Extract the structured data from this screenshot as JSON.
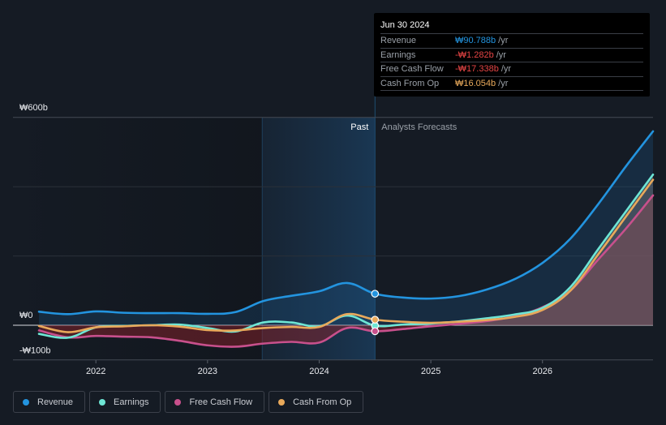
{
  "tooltip": {
    "date": "Jun 30 2024",
    "rows": [
      {
        "label": "Revenue",
        "value": "₩90.788b",
        "unit": "/yr",
        "color": "#2394df"
      },
      {
        "label": "Earnings",
        "value": "-₩1.282b",
        "unit": "/yr",
        "color": "#e64545"
      },
      {
        "label": "Free Cash Flow",
        "value": "-₩17.338b",
        "unit": "/yr",
        "color": "#e64545"
      },
      {
        "label": "Cash From Op",
        "value": "₩16.054b",
        "unit": "/yr",
        "color": "#e8a95b"
      }
    ]
  },
  "legend": [
    {
      "label": "Revenue",
      "color": "#2394df"
    },
    {
      "label": "Earnings",
      "color": "#6ee6d5"
    },
    {
      "label": "Free Cash Flow",
      "color": "#c8508c"
    },
    {
      "label": "Cash From Op",
      "color": "#e8a95b"
    }
  ],
  "chart_data": {
    "type": "line",
    "title": "",
    "xlabel": "",
    "ylabel": "",
    "currency_prefix": "₩",
    "y_ticks": [
      {
        "value": 600,
        "label": "₩600b"
      },
      {
        "value": 0,
        "label": "₩0"
      },
      {
        "value": -100,
        "label": "-₩100b"
      }
    ],
    "y_gridlines": [
      600,
      400,
      200,
      0,
      -100
    ],
    "ylim": [
      -100,
      600
    ],
    "xlim": [
      2021.49,
      2026.99
    ],
    "x_ticks": [
      {
        "value": 2022,
        "label": "2022"
      },
      {
        "value": 2023,
        "label": "2023"
      },
      {
        "value": 2024,
        "label": "2024"
      },
      {
        "value": 2025,
        "label": "2025"
      },
      {
        "value": 2026,
        "label": "2026"
      }
    ],
    "regions": {
      "past_label": "Past",
      "forecast_label": "Analysts Forecasts",
      "highlight_start": 2023.49,
      "divider": 2024.5
    },
    "highlight_date": 2024.5,
    "legend_position": "bottom-left",
    "series": [
      {
        "name": "Revenue",
        "color": "#2394df",
        "x": [
          2021.49,
          2021.75,
          2022.0,
          2022.25,
          2022.5,
          2022.75,
          2023.0,
          2023.25,
          2023.5,
          2023.75,
          2024.0,
          2024.25,
          2024.5,
          2024.75,
          2025.0,
          2025.25,
          2025.5,
          2025.75,
          2026.0,
          2026.25,
          2026.5,
          2026.75,
          2026.99
        ],
        "values": [
          39,
          32,
          40,
          36,
          35,
          35,
          33,
          38,
          70,
          85,
          98,
          122,
          91,
          80,
          77,
          84,
          103,
          133,
          180,
          250,
          350,
          460,
          560
        ]
      },
      {
        "name": "Earnings",
        "color": "#6ee6d5",
        "x": [
          2021.49,
          2021.75,
          2022.0,
          2022.25,
          2022.5,
          2022.75,
          2023.0,
          2023.25,
          2023.5,
          2023.75,
          2024.0,
          2024.25,
          2024.5,
          2024.75,
          2025.0,
          2025.25,
          2025.5,
          2025.75,
          2026.0,
          2026.25,
          2026.5,
          2026.75,
          2026.99
        ],
        "values": [
          -25,
          -36,
          -6,
          -2,
          0,
          2,
          -8,
          -18,
          8,
          8,
          -3,
          28,
          -1.282,
          2,
          5,
          11,
          20,
          31,
          50,
          110,
          220,
          330,
          435
        ]
      },
      {
        "name": "Free Cash Flow",
        "color": "#c8508c",
        "x": [
          2021.49,
          2021.75,
          2022.0,
          2022.25,
          2022.5,
          2022.75,
          2023.0,
          2023.25,
          2023.5,
          2023.75,
          2024.0,
          2024.25,
          2024.5,
          2024.75,
          2025.0,
          2025.25,
          2025.5,
          2025.75,
          2026.0,
          2026.25,
          2026.5,
          2026.75,
          2026.99
        ],
        "values": [
          -15,
          -35,
          -31,
          -33,
          -35,
          -45,
          -58,
          -62,
          -53,
          -48,
          -50,
          -8,
          -17.338,
          -11,
          -3,
          4,
          12,
          26,
          52,
          100,
          190,
          280,
          375
        ]
      },
      {
        "name": "Cash From Op",
        "color": "#e8a95b",
        "x": [
          2021.49,
          2021.75,
          2022.0,
          2022.25,
          2022.5,
          2022.75,
          2023.0,
          2023.25,
          2023.5,
          2023.75,
          2024.0,
          2024.25,
          2024.5,
          2024.75,
          2025.0,
          2025.25,
          2025.5,
          2025.75,
          2026.0,
          2026.25,
          2026.5,
          2026.75,
          2026.99
        ],
        "values": [
          -2,
          -20,
          -6,
          -3,
          0,
          -4,
          -14,
          -15,
          -8,
          -5,
          -5,
          32,
          16.054,
          10,
          7,
          10,
          15,
          24,
          44,
          100,
          205,
          315,
          420
        ]
      }
    ]
  }
}
